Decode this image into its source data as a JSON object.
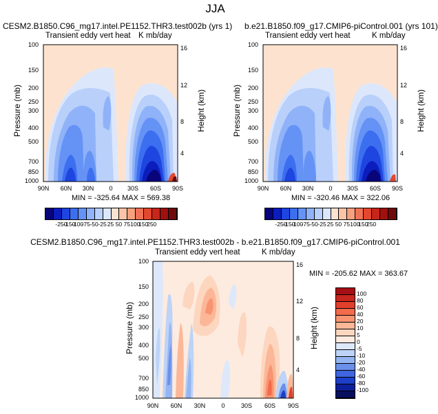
{
  "figure": {
    "title": "JJA"
  },
  "panels": {
    "top_left": {
      "case_title": "CESM2.B1850.C96_mg17.intel.PE1152.THR3.test002b (yrs 1)",
      "left_label": "Transient eddy vert heat",
      "right_label": "K mb/day",
      "stats": "MIN = -325.64   MAX = 569.38"
    },
    "top_right": {
      "case_title": "b.e21.B1850.f09_g17.CMIP6-piControl.001 (yrs 101)",
      "left_label": "Transient eddy vert heat",
      "right_label": "K mb/day",
      "stats": "MIN = -320.46   MAX = 322.06"
    },
    "bottom": {
      "case_title": "CESM2.B1850.C96_mg17.intel.PE1152.THR3.test002b - b.e21.B1850.f09_g17.CMIP6-piControl.001",
      "left_label": "Transient eddy vert heat",
      "right_label": "K mb/day",
      "stats": "MIN = -205.62   MAX = 363.67"
    }
  },
  "chart_data": [
    {
      "type": "heatmap",
      "panel": "top_left",
      "ylabel": "Pressure (mb)",
      "y2label": "Height (km)",
      "xticks": [
        "90N",
        "60N",
        "30N",
        "0",
        "30S",
        "60S",
        "90S"
      ],
      "yticks": [
        "100",
        "150",
        "200",
        "250",
        "300",
        "400",
        "500",
        "700",
        "850",
        "1000"
      ],
      "y2ticks": [
        "16",
        "12",
        "8",
        "4"
      ],
      "min": -325.64,
      "max": 569.38,
      "colorbar_levels": [
        "-250",
        "-150",
        "-100",
        "-75",
        "-50",
        "-25",
        "25",
        "50",
        "75",
        "100",
        "150",
        "250"
      ]
    },
    {
      "type": "heatmap",
      "panel": "top_right",
      "ylabel": "Pressure (mb)",
      "y2label": "Height (km)",
      "xticks": [
        "90N",
        "60N",
        "30N",
        "0",
        "30S",
        "60S",
        "90S"
      ],
      "yticks": [
        "100",
        "150",
        "200",
        "250",
        "300",
        "400",
        "500",
        "700",
        "850",
        "1000"
      ],
      "y2ticks": [
        "16",
        "12",
        "8",
        "4"
      ],
      "min": -320.46,
      "max": 322.06,
      "colorbar_levels": [
        "-250",
        "-150",
        "-100",
        "-75",
        "-50",
        "-25",
        "25",
        "50",
        "75",
        "100",
        "150",
        "250"
      ]
    },
    {
      "type": "heatmap",
      "panel": "bottom",
      "ylabel": "Pressure (mb)",
      "y2label": "Height (km)",
      "xticks": [
        "90N",
        "60N",
        "30N",
        "0",
        "30S",
        "60S",
        "90S"
      ],
      "yticks": [
        "100",
        "150",
        "200",
        "250",
        "300",
        "400",
        "500",
        "700",
        "850",
        "1000"
      ],
      "y2ticks": [
        "16",
        "12",
        "8",
        "4"
      ],
      "min": -205.62,
      "max": 363.67,
      "colorbar_levels": [
        "100",
        "80",
        "60",
        "40",
        "20",
        "10",
        "5",
        "0",
        "-5",
        "-10",
        "-20",
        "-40",
        "-60",
        "-80",
        "-100"
      ]
    }
  ],
  "colors": {
    "top_scale": [
      "#08047a",
      "#0c1dbd",
      "#1f45e0",
      "#3c6ef0",
      "#6592f5",
      "#8fb2f8",
      "#b9d0fb",
      "#dce7fc",
      "#fde3cf",
      "#fbc4a6",
      "#f7a07e",
      "#f07255",
      "#e4472f",
      "#c7261a",
      "#a0100f",
      "#700a0a"
    ],
    "diff_scale": [
      "#a50f15",
      "#c8261e",
      "#e23f2d",
      "#f26b4b",
      "#f89471",
      "#fbb797",
      "#fdd6bf",
      "#fdebdf",
      "#dde8fb",
      "#bdd3f7",
      "#95b5f2",
      "#6b90ea",
      "#3f66e0",
      "#1d3fc9",
      "#0d1f99",
      "#08105e"
    ]
  }
}
